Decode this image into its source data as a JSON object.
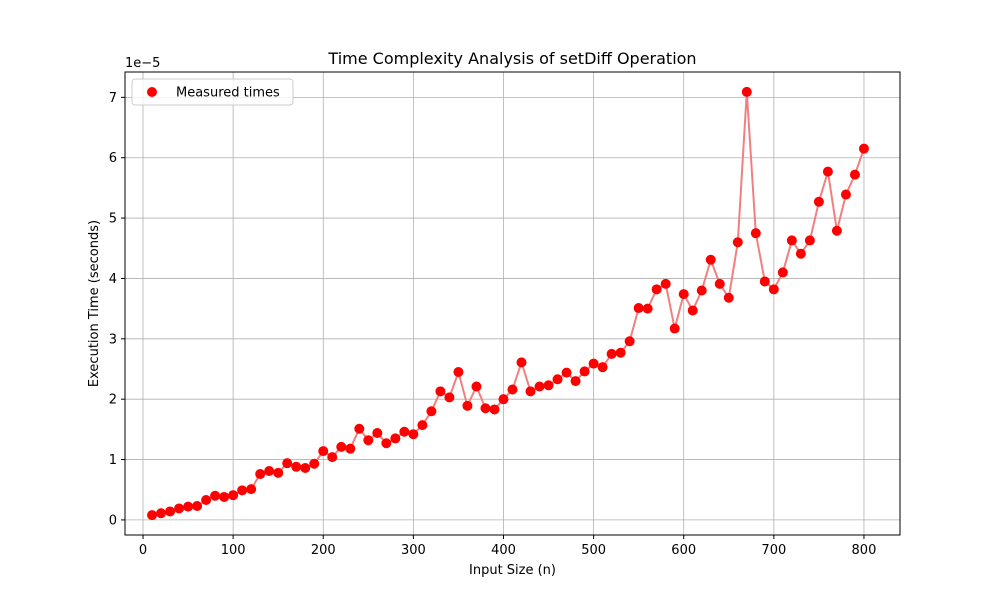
{
  "chart_data": {
    "type": "scatter",
    "title": "Time Complexity Analysis of setDiff Operation",
    "xlabel": "Input Size (n)",
    "ylabel": "Execution Time (seconds)",
    "y_offset_label": "1e−5",
    "y_scale_factor": 1e-05,
    "xlim": [
      -20,
      840
    ],
    "ylim": [
      -0.25,
      7.42
    ],
    "x_ticks": [
      0,
      100,
      200,
      300,
      400,
      500,
      600,
      700,
      800
    ],
    "y_ticks": [
      0,
      1,
      2,
      3,
      4,
      5,
      6,
      7
    ],
    "grid": true,
    "legend_position": "top-left",
    "line_color": "#f08080",
    "marker_color": "#ff0000",
    "series": [
      {
        "name": "Measured times",
        "x": [
          10,
          20,
          30,
          40,
          50,
          60,
          70,
          80,
          90,
          100,
          110,
          120,
          130,
          140,
          150,
          160,
          170,
          180,
          190,
          200,
          210,
          220,
          230,
          240,
          250,
          260,
          270,
          280,
          290,
          300,
          310,
          320,
          330,
          340,
          350,
          360,
          370,
          380,
          390,
          400,
          410,
          420,
          430,
          440,
          450,
          460,
          470,
          480,
          490,
          500,
          510,
          520,
          530,
          540,
          550,
          560,
          570,
          580,
          590,
          600,
          610,
          620,
          630,
          640,
          650,
          660,
          670,
          680,
          690,
          700,
          710,
          720,
          730,
          740,
          750,
          760,
          770,
          780,
          790,
          800
        ],
        "y": [
          0.08,
          0.11,
          0.14,
          0.19,
          0.22,
          0.23,
          0.33,
          0.4,
          0.38,
          0.41,
          0.49,
          0.51,
          0.76,
          0.81,
          0.78,
          0.94,
          0.88,
          0.86,
          0.93,
          1.14,
          1.04,
          1.21,
          1.18,
          1.51,
          1.32,
          1.44,
          1.27,
          1.35,
          1.46,
          1.42,
          1.57,
          1.8,
          2.13,
          2.03,
          2.45,
          1.89,
          2.21,
          1.85,
          1.83,
          2.0,
          2.16,
          2.61,
          2.13,
          2.21,
          2.23,
          2.33,
          2.44,
          2.3,
          2.46,
          2.59,
          2.53,
          2.75,
          2.77,
          2.96,
          3.51,
          3.5,
          3.82,
          3.91,
          3.17,
          3.74,
          3.47,
          3.8,
          4.31,
          3.91,
          3.68,
          4.6,
          7.09,
          4.75,
          3.95,
          3.82,
          4.1,
          4.63,
          4.41,
          4.63,
          5.27,
          5.77,
          4.79,
          5.39,
          5.72,
          6.15
        ]
      }
    ]
  }
}
